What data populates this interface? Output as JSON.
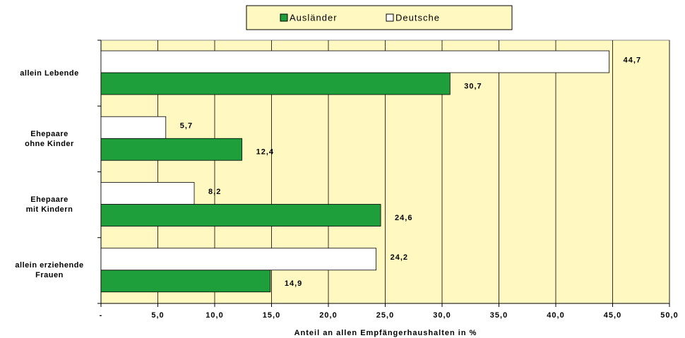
{
  "chart_data": {
    "type": "hbar",
    "categories": [
      "allein Lebende",
      "Ehepaare\nohne Kinder",
      "Ehepaare\nmit Kindern",
      "allein erziehende\nFrauen"
    ],
    "series": [
      {
        "name": "Ausländer",
        "color": "#1f9e3c",
        "values": [
          30.7,
          12.4,
          24.6,
          14.9
        ],
        "value_labels": [
          "30,7",
          "12,4",
          "24,6",
          "14,9"
        ]
      },
      {
        "name": "Deutsche",
        "color": "#ffffff",
        "values": [
          44.7,
          5.7,
          8.2,
          24.2
        ],
        "value_labels": [
          "44,7",
          "5,7",
          "8,2",
          "24,2"
        ]
      }
    ],
    "xlabel": "Anteil an allen Empfängerhaushalten in %",
    "xlim": [
      0,
      50
    ],
    "xticks": [
      {
        "value": 0,
        "label": "-"
      },
      {
        "value": 5,
        "label": "5,0"
      },
      {
        "value": 10,
        "label": "10,0"
      },
      {
        "value": 15,
        "label": "15,0"
      },
      {
        "value": 20,
        "label": "20,0"
      },
      {
        "value": 25,
        "label": "25,0"
      },
      {
        "value": 30,
        "label": "30,0"
      },
      {
        "value": 35,
        "label": "35,0"
      },
      {
        "value": 40,
        "label": "40,0"
      },
      {
        "value": 45,
        "label": "45,0"
      },
      {
        "value": 50,
        "label": "50,0"
      }
    ],
    "grid": true,
    "legend": "top",
    "background": "#fff8c0"
  }
}
